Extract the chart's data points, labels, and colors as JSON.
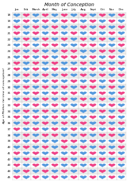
{
  "title": "Month of Conception",
  "ylabel": "Age of Mother (at time of conception)",
  "months": [
    "Jan",
    "Feb",
    "March",
    "April",
    "May",
    "June",
    "July",
    "Aug",
    "Sept",
    "Oct",
    "Nov",
    "Dec"
  ],
  "ages": [
    18,
    19,
    20,
    21,
    22,
    23,
    24,
    25,
    26,
    27,
    28,
    29,
    30,
    31,
    32,
    33,
    34,
    35,
    36,
    37,
    38,
    39,
    40,
    41,
    42,
    43,
    44,
    45
  ],
  "blue_color": "#5599dd",
  "pink_color": "#ee4488",
  "bg_color": "#ffffff",
  "grid_color": "#bbbbbb",
  "grid_row_colors": [
    "#eeeeee",
    "#ffffff"
  ],
  "heart_scale": 0.36,
  "chart": [
    [
      1,
      0,
      1,
      0,
      1,
      0,
      1,
      0,
      1,
      0,
      1,
      0
    ],
    [
      1,
      0,
      1,
      0,
      1,
      0,
      0,
      1,
      0,
      1,
      0,
      1
    ],
    [
      0,
      1,
      0,
      1,
      0,
      1,
      1,
      0,
      1,
      0,
      1,
      0
    ],
    [
      0,
      1,
      0,
      1,
      0,
      1,
      0,
      1,
      0,
      1,
      0,
      1
    ],
    [
      1,
      0,
      1,
      0,
      1,
      0,
      1,
      0,
      1,
      0,
      1,
      0
    ],
    [
      1,
      0,
      1,
      0,
      0,
      1,
      1,
      0,
      0,
      1,
      1,
      0
    ],
    [
      0,
      1,
      0,
      1,
      1,
      0,
      0,
      1,
      1,
      0,
      0,
      1
    ],
    [
      1,
      0,
      1,
      0,
      1,
      0,
      0,
      1,
      0,
      1,
      0,
      1
    ],
    [
      0,
      1,
      0,
      1,
      0,
      1,
      1,
      0,
      1,
      0,
      1,
      0
    ],
    [
      0,
      1,
      0,
      1,
      0,
      1,
      0,
      1,
      0,
      1,
      0,
      1
    ],
    [
      1,
      0,
      1,
      0,
      1,
      0,
      1,
      0,
      1,
      0,
      1,
      0
    ],
    [
      0,
      1,
      0,
      1,
      0,
      1,
      0,
      1,
      0,
      1,
      0,
      1
    ],
    [
      1,
      0,
      1,
      0,
      1,
      0,
      1,
      0,
      0,
      1,
      0,
      1
    ],
    [
      0,
      1,
      0,
      1,
      0,
      1,
      0,
      1,
      1,
      0,
      1,
      0
    ],
    [
      1,
      0,
      1,
      0,
      1,
      0,
      1,
      0,
      1,
      0,
      1,
      0
    ],
    [
      0,
      1,
      0,
      1,
      0,
      1,
      1,
      0,
      0,
      1,
      0,
      1
    ],
    [
      1,
      0,
      1,
      0,
      1,
      0,
      0,
      1,
      1,
      0,
      1,
      0
    ],
    [
      0,
      1,
      0,
      1,
      0,
      1,
      0,
      1,
      0,
      1,
      0,
      1
    ],
    [
      1,
      0,
      1,
      0,
      1,
      0,
      1,
      0,
      1,
      0,
      1,
      0
    ],
    [
      0,
      1,
      0,
      1,
      0,
      1,
      0,
      1,
      0,
      1,
      0,
      1
    ],
    [
      1,
      0,
      1,
      0,
      0,
      1,
      1,
      0,
      1,
      0,
      0,
      1
    ],
    [
      0,
      1,
      0,
      1,
      1,
      0,
      0,
      1,
      0,
      1,
      1,
      0
    ],
    [
      1,
      0,
      1,
      0,
      1,
      0,
      1,
      0,
      1,
      0,
      1,
      0
    ],
    [
      0,
      1,
      0,
      1,
      0,
      1,
      0,
      1,
      0,
      1,
      0,
      1
    ],
    [
      1,
      0,
      1,
      0,
      1,
      0,
      1,
      0,
      1,
      0,
      1,
      0
    ],
    [
      0,
      1,
      0,
      1,
      0,
      1,
      0,
      1,
      0,
      1,
      0,
      1
    ],
    [
      1,
      0,
      1,
      0,
      1,
      0,
      1,
      0,
      1,
      0,
      1,
      0
    ],
    [
      0,
      1,
      0,
      1,
      0,
      1,
      0,
      1,
      0,
      1,
      0,
      1
    ]
  ]
}
